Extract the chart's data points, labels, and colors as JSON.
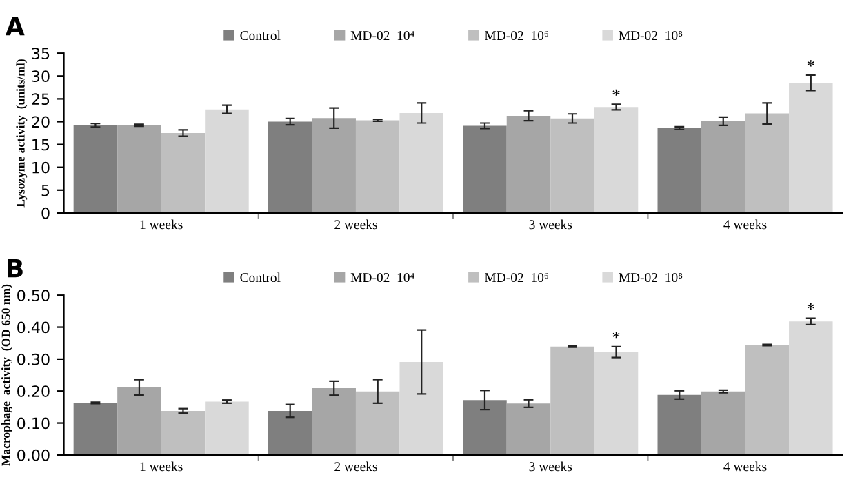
{
  "chart_data": [
    {
      "type": "bar",
      "title": "A",
      "ylabel": "Lysozyme activity  (units/ml)",
      "categories": [
        "1 weeks",
        "2 weeks",
        "3 weeks",
        "4 weeks"
      ],
      "series": [
        {
          "name": "Control",
          "color": "#7f7f7f",
          "values": [
            19.2,
            20.0,
            19.1,
            18.6
          ],
          "errors": [
            0.4,
            0.7,
            0.6,
            0.3
          ]
        },
        {
          "name": "MD-02  10⁴",
          "color": "#a6a6a6",
          "values": [
            19.2,
            20.8,
            21.3,
            20.1
          ],
          "errors": [
            0.2,
            2.2,
            1.1,
            0.9
          ]
        },
        {
          "name": "MD-02  10⁶",
          "color": "#bfbfbf",
          "values": [
            17.5,
            20.3,
            20.7,
            21.8
          ],
          "errors": [
            0.7,
            0.2,
            1.0,
            2.3
          ]
        },
        {
          "name": "MD-02  10⁸",
          "color": "#d9d9d9",
          "values": [
            22.7,
            21.9,
            23.2,
            28.5
          ],
          "errors": [
            0.9,
            2.2,
            0.6,
            1.7
          ]
        }
      ],
      "ylim": [
        0,
        35
      ],
      "yticks": [
        0,
        5,
        10,
        15,
        20,
        25,
        30,
        35
      ],
      "legend": "top",
      "grid": false,
      "annotations": [
        "*",
        "*"
      ]
    },
    {
      "type": "bar",
      "title": "B",
      "ylabel": "Macrophage  activity  (OD 650 nm)",
      "categories": [
        "1 weeks",
        "2 weeks",
        "3 weeks",
        "4 weeks"
      ],
      "series": [
        {
          "name": "Control",
          "color": "#7f7f7f",
          "values": [
            0.163,
            0.138,
            0.172,
            0.188
          ],
          "errors": [
            0.002,
            0.02,
            0.03,
            0.013
          ]
        },
        {
          "name": "MD-02  10⁴",
          "color": "#a6a6a6",
          "values": [
            0.212,
            0.209,
            0.161,
            0.199
          ],
          "errors": [
            0.024,
            0.022,
            0.012,
            0.004
          ]
        },
        {
          "name": "MD-02  10⁶",
          "color": "#bfbfbf",
          "values": [
            0.138,
            0.199,
            0.339,
            0.344
          ],
          "errors": [
            0.007,
            0.037,
            0.002,
            0.002
          ]
        },
        {
          "name": "MD-02  10⁸",
          "color": "#d9d9d9",
          "values": [
            0.167,
            0.291,
            0.322,
            0.418
          ],
          "errors": [
            0.005,
            0.1,
            0.017,
            0.01
          ]
        }
      ],
      "ylim": [
        0,
        0.5
      ],
      "yticks": [
        {
          "value": 0,
          "label": "0.00"
        },
        {
          "value": 0.1,
          "label": "0.10"
        },
        {
          "value": 0.2,
          "label": "0.20"
        },
        {
          "value": 0.3,
          "label": "0.30"
        },
        {
          "value": 0.4,
          "label": "0.40"
        },
        {
          "value": 0.5,
          "label": "0.50"
        }
      ],
      "legend": "top",
      "grid": false,
      "annotations": [
        "*",
        "*"
      ]
    }
  ]
}
